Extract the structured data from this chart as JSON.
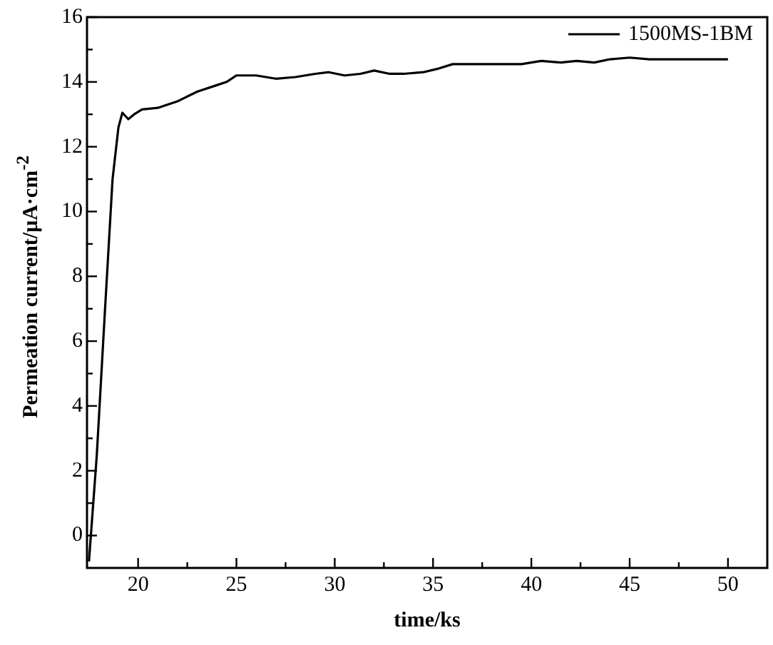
{
  "chart_data": {
    "type": "line",
    "xlabel": "time/ks",
    "ylabel": "Permeation current/μA·cm$^{-2}$",
    "legend": "top right",
    "grid": false,
    "marker": "none",
    "line_style": "solid",
    "xlim": [
      17.4,
      52
    ],
    "ylim": [
      -1,
      16
    ],
    "xticks": [
      20,
      {
        "value": 22.5,
        "label": null
      },
      25,
      {
        "value": 27.5,
        "label": null
      },
      30,
      {
        "value": 32.5,
        "label": null
      },
      35,
      {
        "value": 37.5,
        "label": null
      },
      40,
      {
        "value": 42.5,
        "label": null
      },
      45,
      {
        "value": 47.5,
        "label": null
      },
      50
    ],
    "yticks": [
      0,
      {
        "value": 1,
        "label": null
      },
      2,
      {
        "value": 3,
        "label": null
      },
      4,
      {
        "value": 5,
        "label": null
      },
      6,
      {
        "value": 7,
        "label": null
      },
      8,
      {
        "value": 9,
        "label": null
      },
      10,
      {
        "value": 11,
        "label": null
      },
      12,
      {
        "value": 13,
        "label": null
      },
      14,
      {
        "value": 15,
        "label": null
      },
      16
    ],
    "series": [
      {
        "name": "1500MS-1BM",
        "color": "#000000",
        "x": [
          17.5,
          17.9,
          18.3,
          18.7,
          19.0,
          19.2,
          19.5,
          19.8,
          20.2,
          21,
          22,
          23,
          24,
          24.5,
          25,
          26,
          27,
          28,
          29,
          29.7,
          30.5,
          31.3,
          32,
          32.8,
          33.5,
          34.5,
          35.2,
          36,
          36.8,
          38,
          39.5,
          40.5,
          41.5,
          42.3,
          43.2,
          44,
          45,
          46,
          47,
          48.5,
          50
        ],
        "values": [
          -0.8,
          2.5,
          6.8,
          11.0,
          12.6,
          13.05,
          12.85,
          13.0,
          13.15,
          13.2,
          13.4,
          13.7,
          13.9,
          14.0,
          14.2,
          14.2,
          14.1,
          14.15,
          14.25,
          14.3,
          14.2,
          14.25,
          14.35,
          14.25,
          14.25,
          14.3,
          14.4,
          14.55,
          14.55,
          14.55,
          14.55,
          14.65,
          14.6,
          14.65,
          14.6,
          14.7,
          14.75,
          14.7,
          14.7,
          14.7,
          14.7
        ]
      }
    ]
  }
}
